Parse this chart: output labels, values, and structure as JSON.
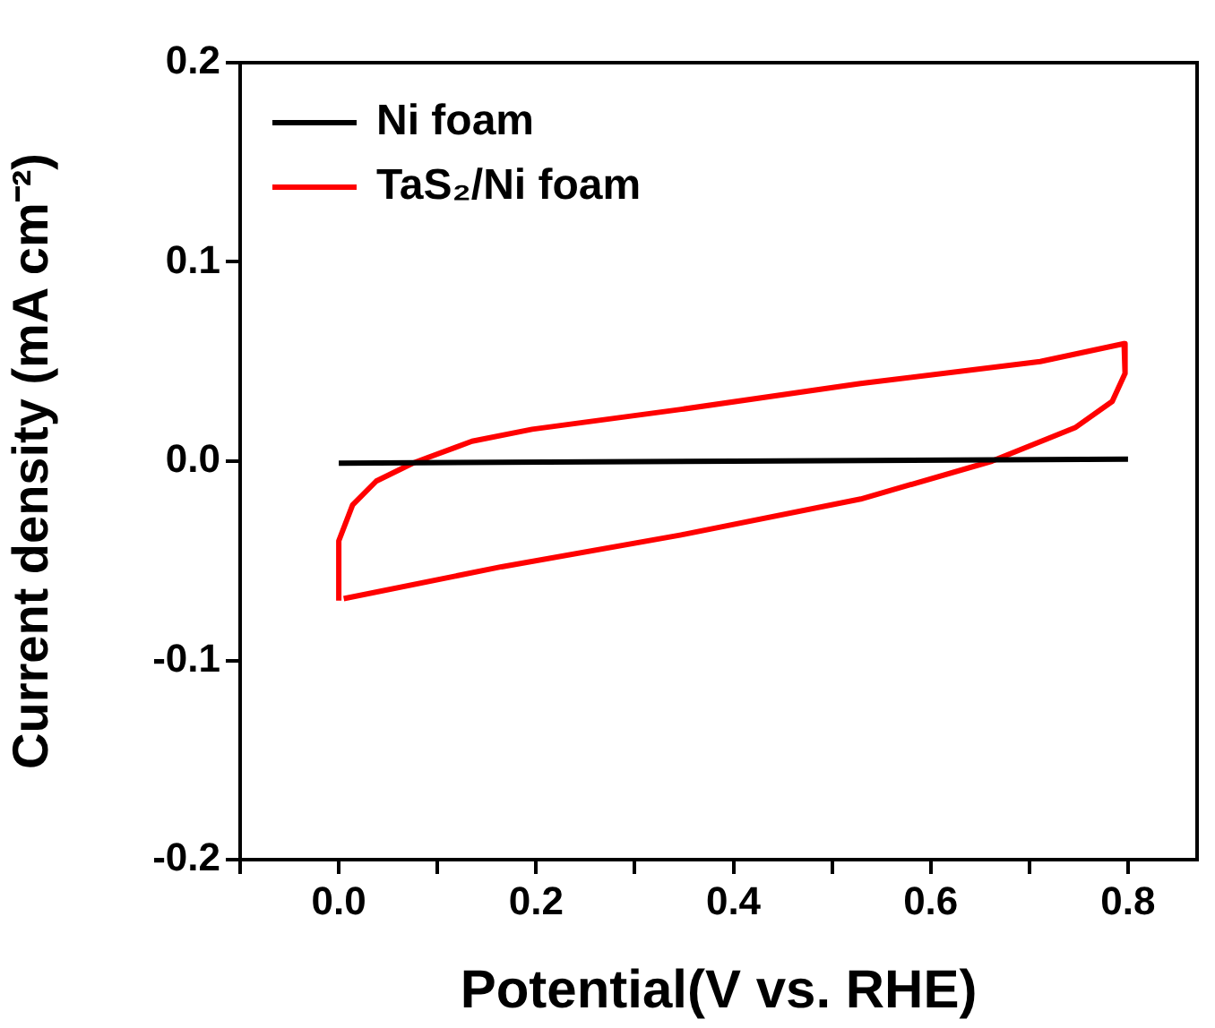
{
  "chart_data": {
    "type": "line",
    "xlabel": "Potential(V vs. RHE)",
    "ylabel": "Current density (mA cm⁻²)",
    "xlim": [
      -0.1,
      0.87
    ],
    "ylim": [
      -0.2,
      0.2
    ],
    "xticks": [
      {
        "value": -0.1,
        "label": null
      },
      {
        "value": 0,
        "label": "0.0"
      },
      {
        "value": 0.1,
        "label": null
      },
      0.2,
      {
        "value": 0.3,
        "label": null
      },
      0.4,
      {
        "value": 0.5,
        "label": null
      },
      0.6,
      {
        "value": 0.7,
        "label": null
      },
      0.8
    ],
    "yticks": [
      -0.2,
      -0.1,
      {
        "value": 0,
        "label": "0.0"
      },
      0.1,
      0.2
    ],
    "legend": "top left",
    "grid": false,
    "marker": "none",
    "line_style": "solid",
    "series": [
      {
        "name": "Ni foam",
        "color": "#000000",
        "x": [
          0.0,
          0.4,
          0.8
        ],
        "values": [
          -0.001,
          0.0,
          0.001
        ]
      },
      {
        "name": "TaS₂/Ni foam",
        "color": "#ff0000",
        "x": [
          0.0,
          0.0,
          0.014,
          0.038,
          0.075,
          0.135,
          0.196,
          0.347,
          0.529,
          0.711,
          0.796,
          0.797,
          0.784,
          0.747,
          0.662,
          0.529,
          0.347,
          0.165,
          0.005
        ],
        "values": [
          -0.07,
          -0.04,
          -0.022,
          -0.01,
          -0.001,
          0.01,
          0.016,
          0.026,
          0.039,
          0.05,
          0.059,
          0.044,
          0.03,
          0.017,
          0.0,
          -0.019,
          -0.037,
          -0.053,
          -0.069
        ]
      }
    ]
  }
}
